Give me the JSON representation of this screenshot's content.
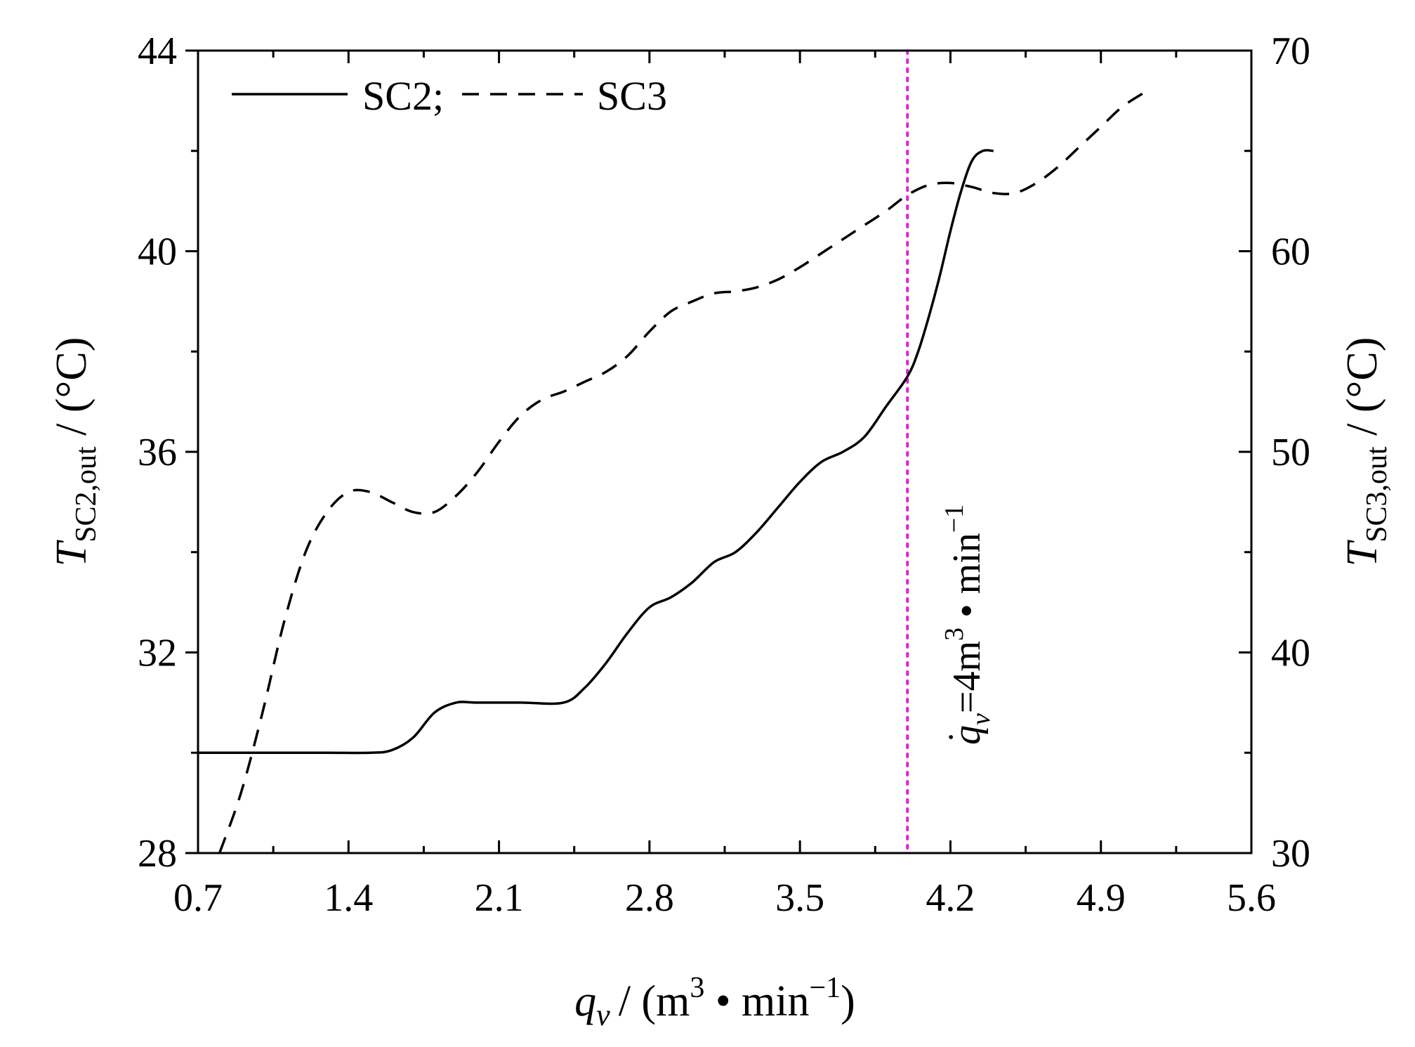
{
  "chart_data": {
    "type": "line",
    "x": {
      "label_var": "q",
      "label_var_sub": "v",
      "label_unit": "/ (m",
      "label_unit_sup": "3",
      "label_unit_mid": " • min",
      "label_unit_sup2": "−1",
      "label_unit_end": ")",
      "lim": [
        0.7,
        5.6
      ],
      "ticks": [
        "0.7",
        "1.4",
        "2.1",
        "2.8",
        "3.5",
        "4.2",
        "4.9",
        "5.6"
      ]
    },
    "y_left": {
      "label_var": "T",
      "label_sub": "SC2,out",
      "label_unit": " / (°C)",
      "lim": [
        28,
        44
      ],
      "ticks": [
        "28",
        "32",
        "36",
        "40",
        "44"
      ]
    },
    "y_right": {
      "label_var": "T",
      "label_sub": "SC3,out",
      "label_unit": " / (°C)",
      "lim": [
        30,
        70
      ],
      "ticks": [
        "30",
        "40",
        "50",
        "60",
        "70"
      ]
    },
    "series": [
      {
        "name": "SC2;",
        "axis": "left",
        "style": "solid",
        "color": "#000000",
        "x": [
          0.7,
          1.0,
          1.3,
          1.5,
          1.6,
          1.7,
          1.8,
          1.9,
          2.0,
          2.2,
          2.4,
          2.5,
          2.6,
          2.7,
          2.8,
          2.9,
          3.0,
          3.1,
          3.2,
          3.3,
          3.4,
          3.5,
          3.6,
          3.7,
          3.8,
          3.9,
          4.0,
          4.05,
          4.1,
          4.15,
          4.2,
          4.25,
          4.3,
          4.35,
          4.4
        ],
        "y": [
          30.0,
          30.0,
          30.0,
          30.0,
          30.05,
          30.3,
          30.8,
          31.0,
          31.0,
          31.0,
          31.0,
          31.3,
          31.8,
          32.4,
          32.9,
          33.1,
          33.4,
          33.8,
          34.0,
          34.4,
          34.9,
          35.4,
          35.8,
          36.0,
          36.3,
          36.9,
          37.5,
          38.0,
          38.7,
          39.5,
          40.4,
          41.2,
          41.8,
          42.0,
          42.0
        ]
      },
      {
        "name": "SC3",
        "axis": "right",
        "style": "dashed",
        "color": "#000000",
        "x": [
          0.8,
          0.9,
          1.0,
          1.1,
          1.2,
          1.3,
          1.4,
          1.5,
          1.6,
          1.7,
          1.8,
          1.9,
          2.0,
          2.1,
          2.2,
          2.3,
          2.4,
          2.5,
          2.6,
          2.7,
          2.8,
          2.9,
          3.0,
          3.1,
          3.2,
          3.3,
          3.4,
          3.5,
          3.6,
          3.7,
          3.8,
          3.9,
          4.0,
          4.1,
          4.2,
          4.3,
          4.4,
          4.5,
          4.6,
          4.7,
          4.8,
          4.9,
          5.0,
          5.1
        ],
        "y": [
          30.0,
          33.0,
          37.0,
          41.5,
          45.0,
          47.0,
          48.0,
          48.0,
          47.5,
          47.0,
          47.0,
          47.8,
          49.0,
          50.5,
          51.8,
          52.6,
          53.0,
          53.5,
          54.0,
          54.8,
          56.0,
          57.0,
          57.5,
          57.9,
          58.0,
          58.2,
          58.6,
          59.2,
          59.9,
          60.6,
          61.3,
          62.0,
          62.8,
          63.3,
          63.4,
          63.2,
          62.9,
          62.9,
          63.4,
          64.2,
          65.2,
          66.2,
          67.2,
          67.9
        ]
      }
    ],
    "marker_line": {
      "x": 4.0,
      "color": "#e020e0",
      "style": "dotted",
      "label_var": "q",
      "label_sub": "v",
      "label_rest": "=4m",
      "label_sup": "3",
      "label_tail": " • min",
      "label_sup2": "−1"
    },
    "legend": {
      "position": "top-left"
    },
    "grid": false
  }
}
